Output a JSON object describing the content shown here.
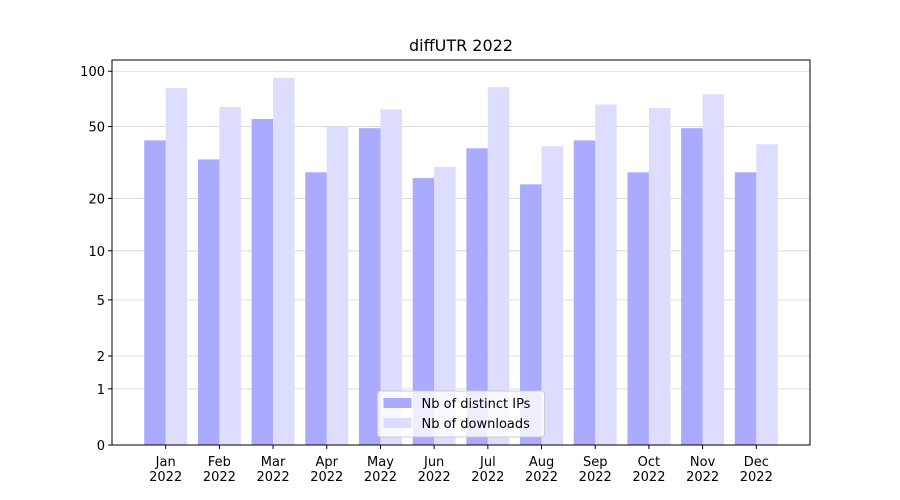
{
  "chart_data": {
    "type": "bar",
    "title": "diffUTR 2022",
    "categories": [
      "Jan\n2022",
      "Feb\n2022",
      "Mar\n2022",
      "Apr\n2022",
      "May\n2022",
      "Jun\n2022",
      "Jul\n2022",
      "Aug\n2022",
      "Sep\n2022",
      "Oct\n2022",
      "Nov\n2022",
      "Dec\n2022"
    ],
    "series": [
      {
        "name": "Nb of distinct IPs",
        "color": "#aaaaff",
        "values": [
          42,
          33,
          55,
          28,
          49,
          26,
          38,
          24,
          42,
          28,
          49,
          28
        ]
      },
      {
        "name": "Nb of downloads",
        "color": "#ddddff",
        "values": [
          81,
          64,
          92,
          50,
          62,
          30,
          82,
          39,
          66,
          63,
          75,
          40
        ]
      }
    ],
    "yscale": "log1p",
    "ylim": [
      0,
      115
    ],
    "yticks": [
      0,
      1,
      2,
      5,
      10,
      20,
      50,
      100
    ],
    "grid": true,
    "legend": "lower center"
  }
}
